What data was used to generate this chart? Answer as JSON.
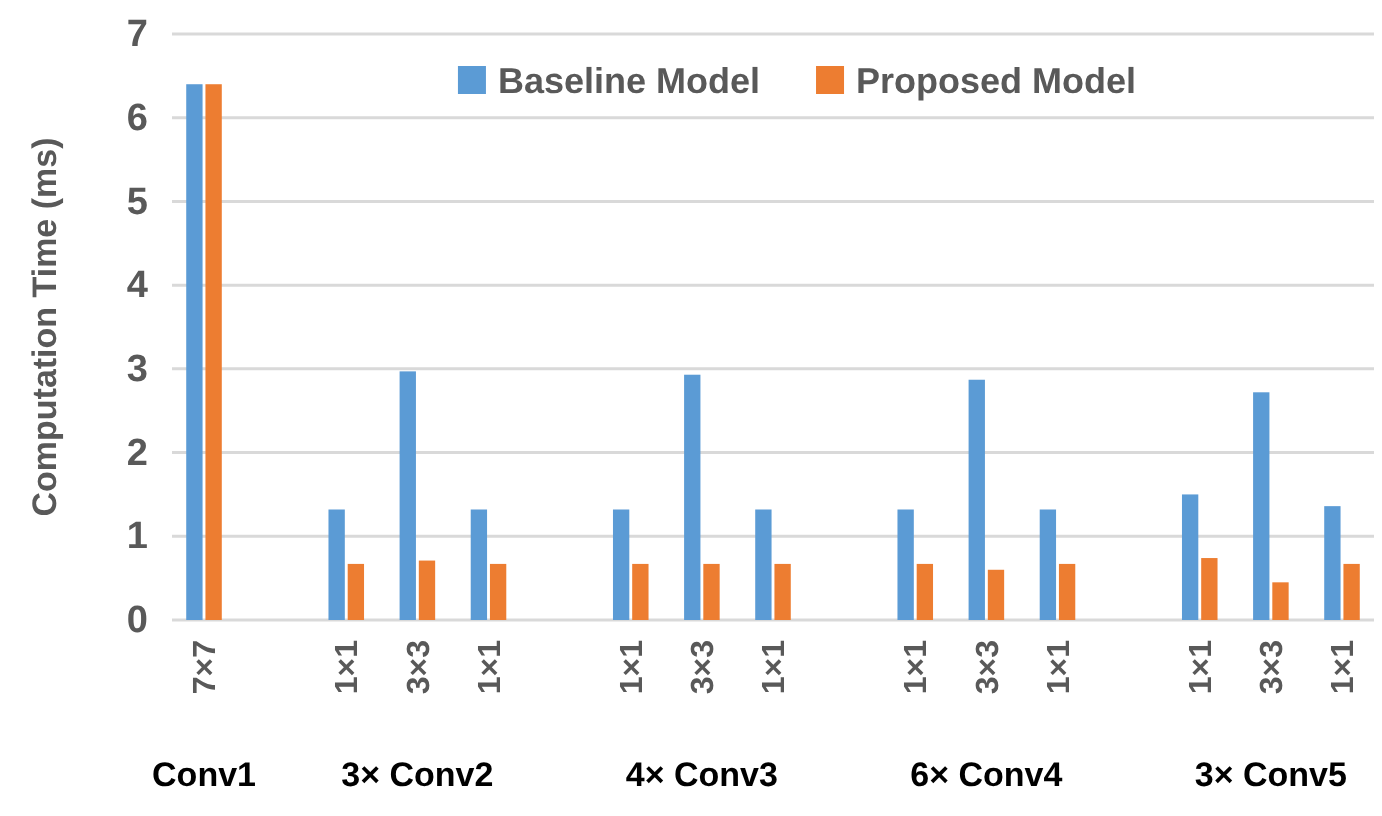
{
  "chart_data": {
    "type": "bar",
    "ylabel": "Computation Time (ms)",
    "categories": [
      "7×7",
      null,
      "1×1",
      "3×3",
      "1×1",
      null,
      "1×1",
      "3×3",
      "1×1",
      null,
      "1×1",
      "3×3",
      "1×1",
      null,
      "1×1",
      "3×3",
      "1×1"
    ],
    "series": [
      {
        "name": "Baseline Model",
        "color": "#5b9bd5",
        "values": [
          6.4,
          null,
          1.32,
          2.97,
          1.32,
          null,
          1.32,
          2.93,
          1.32,
          null,
          1.32,
          2.87,
          1.32,
          null,
          1.5,
          2.72,
          1.36
        ]
      },
      {
        "name": "Proposed Model",
        "color": "#ed7d31",
        "values": [
          6.4,
          null,
          0.67,
          0.71,
          0.67,
          null,
          0.67,
          0.67,
          0.67,
          null,
          0.67,
          0.6,
          0.67,
          null,
          0.74,
          0.45,
          0.67
        ]
      }
    ],
    "ylim": [
      0,
      7
    ],
    "yticks": [
      0,
      1,
      2,
      3,
      4,
      5,
      6,
      7
    ],
    "grid": "y",
    "legend": "top",
    "annotations": [
      "Conv1",
      "3× Conv2",
      "4× Conv3",
      "6× Conv4",
      "3× Conv5"
    ]
  }
}
